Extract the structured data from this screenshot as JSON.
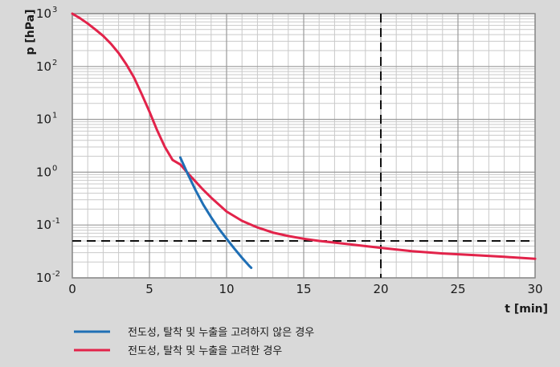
{
  "chart_data": {
    "type": "line",
    "xlabel": "t [min]",
    "ylabel": "p [hPa]",
    "xlim": [
      0,
      30
    ],
    "ylim": [
      0.01,
      1000
    ],
    "yscale": "log",
    "x_ticks": [
      0,
      5,
      10,
      15,
      20,
      25,
      30
    ],
    "y_ticks": [
      {
        "base": "10",
        "exp": "-2",
        "value": 0.01
      },
      {
        "base": "10",
        "exp": "-1",
        "value": 0.1
      },
      {
        "base": "10",
        "exp": "0",
        "value": 1
      },
      {
        "base": "10",
        "exp": "1",
        "value": 10
      },
      {
        "base": "10",
        "exp": "2",
        "value": 100
      },
      {
        "base": "10",
        "exp": "3",
        "value": 1000
      }
    ],
    "grid": true,
    "legend_position": "bottom",
    "series": [
      {
        "name": "전도성, 탈착 및 누출을 고려하지 않은 경우",
        "color": "#1f6fb5",
        "points": [
          [
            7.0,
            1.9
          ],
          [
            7.5,
            0.9
          ],
          [
            8.0,
            0.45
          ],
          [
            8.5,
            0.24
          ],
          [
            9.0,
            0.14
          ],
          [
            9.5,
            0.085
          ],
          [
            10.0,
            0.055
          ],
          [
            10.5,
            0.036
          ],
          [
            11.0,
            0.024
          ],
          [
            11.5,
            0.0165
          ],
          [
            11.6,
            0.0155
          ]
        ]
      },
      {
        "name": "전도성, 탈착 및 누출을 고려한 경우",
        "color": "#e2234a",
        "points": [
          [
            0,
            1000
          ],
          [
            0.5,
            820
          ],
          [
            1,
            650
          ],
          [
            1.5,
            500
          ],
          [
            2,
            380
          ],
          [
            2.5,
            270
          ],
          [
            3,
            180
          ],
          [
            3.5,
            110
          ],
          [
            4,
            62
          ],
          [
            4.5,
            30
          ],
          [
            5,
            14
          ],
          [
            5.5,
            6.2
          ],
          [
            6,
            3.0
          ],
          [
            6.5,
            1.7
          ],
          [
            7,
            1.4
          ],
          [
            7.5,
            0.95
          ],
          [
            8,
            0.66
          ],
          [
            8.5,
            0.46
          ],
          [
            9,
            0.33
          ],
          [
            10,
            0.18
          ],
          [
            11,
            0.12
          ],
          [
            12,
            0.09
          ],
          [
            13,
            0.072
          ],
          [
            14,
            0.062
          ],
          [
            15,
            0.055
          ],
          [
            16,
            0.05
          ],
          [
            18,
            0.043
          ],
          [
            20,
            0.037
          ],
          [
            22,
            0.032
          ],
          [
            24,
            0.029
          ],
          [
            26,
            0.027
          ],
          [
            28,
            0.025
          ],
          [
            30,
            0.023
          ]
        ]
      }
    ],
    "reference_lines": [
      {
        "axis": "x",
        "value": 20,
        "style": "dashed"
      },
      {
        "axis": "y",
        "value": 0.05,
        "style": "dashed"
      }
    ]
  }
}
